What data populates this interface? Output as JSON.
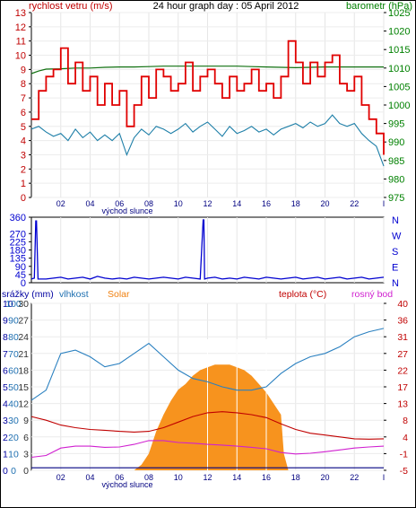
{
  "header": {
    "left_label": "rychlost vetru (m/s)",
    "title": "24 hour graph day : 05 April 2012",
    "right_label": "barometr (hPa)"
  },
  "colors": {
    "wind_gust": "#e00000",
    "wind_avg": "#1e7fa8",
    "pressure": "#107010",
    "direction": "#0000d0",
    "humidity": "#2a80c0",
    "solar": "#f7931e",
    "temperature": "#c00000",
    "dewpoint": "#d020d0",
    "rain": "#000080",
    "left_axis_red": "#c00000",
    "right_axis_green": "#008000",
    "humidity_axis": "#1e6fb0",
    "rain_axis": "#0000a0",
    "solar_label": "#f08010",
    "temp_axis": "#c00000",
    "dew_label": "#d020d0"
  },
  "icons": [
    "sunrise-label"
  ],
  "chart_data": [
    {
      "type": "line",
      "name": "wind-pressure",
      "title": "24 hour graph day : 05 April 2012",
      "x_ticks": [
        "02",
        "04",
        "06",
        "08",
        "10",
        "12",
        "14",
        "16",
        "18",
        "20",
        "22",
        "I"
      ],
      "x_annotation": "východ slunce",
      "left_axis": {
        "label": "rychlost vetru (m/s)",
        "ylim": [
          0,
          13
        ],
        "ticks": [
          "0",
          "1",
          "2",
          "3",
          "4",
          "5",
          "6",
          "7",
          "8",
          "9",
          "10",
          "11",
          "12",
          "13"
        ]
      },
      "right_axis": {
        "label": "barometr (hPa)",
        "ylim": [
          975,
          1025
        ],
        "ticks": [
          "975",
          "980",
          "985",
          "990",
          "995",
          "1000",
          "1005",
          "1010",
          "1015",
          "1020",
          "1025"
        ]
      },
      "series": [
        {
          "key": "gust",
          "axis": "left",
          "x": [
            0,
            0.5,
            1,
            1.5,
            2,
            2.5,
            3,
            3.5,
            4,
            4.5,
            5,
            5.5,
            6,
            6.5,
            7,
            7.5,
            8,
            8.5,
            9,
            9.5,
            10,
            10.5,
            11,
            11.5,
            12,
            12.5,
            13,
            13.5,
            14,
            14.5,
            15,
            15.5,
            16,
            16.5,
            17,
            17.5,
            18,
            18.5,
            19,
            19.5,
            20,
            20.5,
            21,
            21.5,
            22,
            22.5,
            23,
            23.5,
            24
          ],
          "y": [
            5.5,
            7.5,
            8.5,
            9.0,
            10.5,
            8.0,
            9.5,
            7.5,
            8.5,
            6.5,
            8.0,
            6.5,
            7.5,
            5.0,
            6.5,
            8.5,
            7.0,
            9.0,
            8.5,
            7.5,
            8.0,
            9.5,
            7.5,
            8.5,
            9.0,
            8.0,
            7.0,
            8.5,
            7.5,
            8.0,
            9.0,
            7.5,
            8.0,
            7.0,
            8.5,
            11.0,
            9.5,
            8.0,
            9.5,
            8.5,
            9.5,
            10.0,
            8.0,
            7.5,
            8.5,
            6.5,
            5.5,
            4.5,
            3.0
          ]
        },
        {
          "key": "average",
          "axis": "left",
          "x": [
            0,
            0.5,
            1,
            1.5,
            2,
            2.5,
            3,
            3.5,
            4,
            4.5,
            5,
            5.5,
            6,
            6.5,
            7,
            7.5,
            8,
            8.5,
            9,
            9.5,
            10,
            10.5,
            11,
            11.5,
            12,
            12.5,
            13,
            13.5,
            14,
            14.5,
            15,
            15.5,
            16,
            16.5,
            17,
            17.5,
            18,
            18.5,
            19,
            19.5,
            20,
            20.5,
            21,
            21.5,
            22,
            22.5,
            23,
            23.5,
            24
          ],
          "y": [
            4.8,
            5.0,
            4.6,
            4.3,
            4.5,
            4.0,
            4.8,
            4.2,
            4.6,
            4.0,
            4.4,
            4.0,
            4.5,
            3.0,
            4.2,
            4.8,
            4.4,
            5.0,
            4.8,
            4.5,
            4.8,
            5.2,
            4.6,
            5.0,
            5.3,
            4.8,
            4.3,
            5.0,
            4.5,
            4.7,
            5.0,
            4.6,
            4.8,
            4.4,
            4.8,
            5.0,
            5.2,
            4.9,
            5.3,
            5.0,
            5.2,
            5.8,
            5.2,
            5.0,
            5.2,
            4.5,
            4.0,
            3.6,
            2.2
          ]
        },
        {
          "key": "pressure",
          "axis": "right",
          "x": [
            0,
            0.5,
            1,
            2,
            3,
            4,
            5,
            6,
            7,
            8,
            9,
            10,
            11,
            12,
            13,
            14,
            15,
            16,
            17,
            18,
            19,
            20,
            21,
            22,
            23,
            24
          ],
          "y": [
            1008.5,
            1009.2,
            1009.7,
            1009.8,
            1010.0,
            1010.0,
            1010.2,
            1010.3,
            1010.3,
            1010.4,
            1010.5,
            1010.5,
            1010.5,
            1010.5,
            1010.5,
            1010.5,
            1010.4,
            1010.3,
            1010.2,
            1010.1,
            1010.2,
            1010.3,
            1010.3,
            1010.3,
            1010.3,
            1010.3
          ]
        }
      ]
    },
    {
      "type": "line",
      "name": "wind-direction",
      "left_axis": {
        "ylim": [
          0,
          360
        ],
        "ticks": [
          "0",
          "45",
          "90",
          "135",
          "180",
          "225",
          "270",
          "360"
        ]
      },
      "right_axis": {
        "ticks": [
          "N",
          "W",
          "S",
          "E",
          "N"
        ]
      },
      "series": [
        {
          "key": "direction",
          "x": [
            0,
            0.2,
            0.3,
            0.35,
            0.45,
            1,
            1.5,
            2,
            2.5,
            3,
            3.5,
            4,
            4.5,
            5,
            5.5,
            6,
            6.5,
            7,
            7.5,
            8,
            8.5,
            9,
            9.5,
            10,
            10.5,
            11,
            11.5,
            11.7,
            11.75,
            11.8,
            12,
            12.5,
            13,
            13.5,
            14,
            14.5,
            15,
            15.5,
            16,
            16.5,
            17,
            17.5,
            18,
            18.5,
            19,
            19.5,
            20,
            20.5,
            21,
            21.5,
            22,
            22.5,
            23,
            23.5,
            24
          ],
          "y": [
            20,
            25,
            340,
            340,
            20,
            20,
            25,
            30,
            20,
            25,
            30,
            20,
            35,
            25,
            20,
            25,
            20,
            30,
            25,
            20,
            25,
            30,
            25,
            20,
            30,
            25,
            20,
            345,
            345,
            20,
            25,
            30,
            20,
            25,
            20,
            30,
            25,
            20,
            30,
            25,
            20,
            25,
            30,
            20,
            25,
            30,
            20,
            25,
            30,
            20,
            25,
            30,
            20,
            25,
            30
          ]
        }
      ]
    },
    {
      "type": "area",
      "name": "weather-combined",
      "x_ticks": [
        "02",
        "04",
        "06",
        "08",
        "10",
        "12",
        "14",
        "16",
        "18",
        "20",
        "22",
        "I"
      ],
      "x_annotation": "východ slunce",
      "axes": {
        "rain": {
          "label": "srážky (mm)",
          "ylim": [
            0,
            10
          ],
          "ticks": [
            "0",
            "1",
            "2",
            "3",
            "4",
            "5",
            "6",
            "7",
            "8",
            "9",
            "10"
          ]
        },
        "humidity": {
          "label": "vlhkost",
          "ylim": [
            0,
            100
          ],
          "ticks": [
            "0",
            "10",
            "20",
            "30",
            "40",
            "50",
            "60",
            "70",
            "80",
            "90",
            "100"
          ]
        },
        "solar": {
          "label": "Solar",
          "ylim": [
            0,
            30
          ],
          "ticks": [
            "0",
            "3",
            "6",
            "9",
            "12",
            "15",
            "18",
            "21",
            "24",
            "27",
            "30"
          ]
        },
        "temperature": {
          "label": "teplota (°C)",
          "ylim": [
            -5,
            40
          ],
          "ticks": [
            "-5",
            "-1",
            "4",
            "8",
            "13",
            "17",
            "22",
            "27",
            "31",
            "36",
            "40"
          ]
        },
        "dewpoint": {
          "label": "rosný bod"
        }
      },
      "series": [
        {
          "key": "humidity",
          "axis": "humidity",
          "x": [
            0,
            1,
            2,
            3,
            4,
            5,
            6,
            7,
            8,
            9,
            10,
            11,
            12,
            13,
            14,
            15,
            16,
            17,
            18,
            19,
            20,
            21,
            22,
            23,
            24
          ],
          "y": [
            42,
            48,
            70,
            72,
            68,
            62,
            64,
            70,
            76,
            68,
            60,
            55,
            53,
            50,
            48,
            48,
            50,
            58,
            64,
            68,
            70,
            74,
            80,
            83,
            85
          ]
        },
        {
          "key": "temperature",
          "axis": "temperature",
          "x": [
            0,
            1,
            2,
            3,
            4,
            5,
            6,
            7,
            8,
            9,
            10,
            11,
            12,
            13,
            14,
            15,
            16,
            17,
            18,
            19,
            20,
            21,
            22,
            23,
            24
          ],
          "y": [
            9.5,
            8.5,
            7.2,
            6.5,
            6,
            5.8,
            5.5,
            5.3,
            5.5,
            6.5,
            8,
            9.5,
            10.5,
            10.8,
            10.5,
            10,
            9.2,
            7.5,
            6,
            5,
            4.5,
            4,
            3.5,
            3.4,
            3.5
          ]
        },
        {
          "key": "dewpoint",
          "axis": "temperature",
          "x": [
            0,
            1,
            2,
            3,
            4,
            5,
            6,
            7,
            8,
            9,
            10,
            11,
            12,
            13,
            14,
            15,
            16,
            17,
            18,
            19,
            20,
            21,
            22,
            23,
            24
          ],
          "y": [
            -1.5,
            -1,
            1,
            1.5,
            1.5,
            1.2,
            1.3,
            2,
            3,
            3,
            2.5,
            2.3,
            2,
            1.8,
            1.5,
            1.2,
            0.8,
            -0.2,
            -0.6,
            -0.4,
            0,
            0.5,
            1,
            1.3,
            1.5
          ]
        },
        {
          "key": "solar",
          "axis": "solar",
          "x": [
            0,
            7,
            7.5,
            8,
            8.5,
            9,
            9.5,
            10,
            10.5,
            11,
            11.5,
            12,
            12.5,
            13,
            13.5,
            14,
            14.5,
            15,
            15.5,
            16,
            16.5,
            17,
            17.2,
            17.5,
            18,
            24
          ],
          "y": [
            0,
            0,
            1,
            3,
            7,
            10,
            12.5,
            14.5,
            15.5,
            17,
            18,
            18.5,
            19,
            19,
            19,
            18.5,
            18,
            17,
            15.5,
            14,
            12,
            10,
            3,
            0,
            0,
            0
          ]
        },
        {
          "key": "rain",
          "axis": "rain",
          "x": [
            0,
            3,
            6,
            9,
            12,
            15,
            18,
            21,
            24
          ],
          "y": [
            0.15,
            0.15,
            0.15,
            0.15,
            0.15,
            0.15,
            0.15,
            0.15,
            0.15
          ]
        }
      ]
    }
  ]
}
